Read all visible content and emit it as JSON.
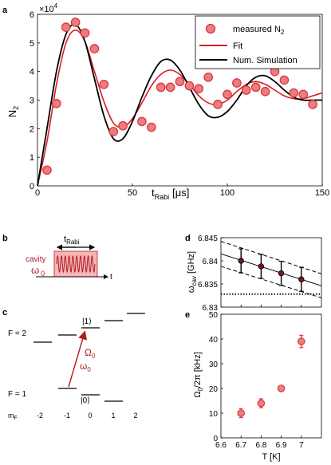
{
  "colors": {
    "measured": "#e0353c",
    "measured_fill": "#e87e82",
    "fit": "#d61f26",
    "sim": "#000000",
    "arrow": "#b01c22",
    "pulse_box": "#f5b5b7",
    "dark_point": "#7a1418"
  },
  "panel_labels": {
    "a": "a",
    "b": "b",
    "c": "c",
    "d": "d",
    "e": "e"
  },
  "panel_b": {
    "t_main": "t",
    "t_sub": "Rabi",
    "cavity": "cavity",
    "omega": "ω",
    "omega_sub": "0",
    "t_axis": "t"
  },
  "panel_c": {
    "f2": "F = 2",
    "f1": "F = 1",
    "ket1": "|1⟩",
    "ket0": "|0⟩",
    "Omega": "Ω",
    "Omega_sub": "0",
    "omega": "ω",
    "omega_sub": "0",
    "mf": "m",
    "mf_sub": "F",
    "mf_values": [
      "-2",
      "-1",
      "0",
      "1",
      "2"
    ]
  },
  "chart_data": [
    {
      "id": "a",
      "type": "line",
      "xlabel": "t",
      "xlabel_sub": "Rabi",
      "xlabel_unit": "[μs]",
      "ylabel": "N",
      "ylabel_sub": "2",
      "exponent": "×10",
      "exponent_power": "4",
      "xlim": [
        0,
        150
      ],
      "ylim": [
        0,
        6
      ],
      "xticks": [
        "0",
        "50",
        "100",
        "150"
      ],
      "yticks": [
        "0",
        "1",
        "2",
        "3",
        "4",
        "5",
        "6"
      ],
      "legend_position": "top-right",
      "series": [
        {
          "name": "measured N",
          "name_sub": "2",
          "kind": "scatter",
          "x": [
            5,
            10,
            15,
            20,
            25,
            30,
            35,
            40,
            45,
            55,
            60,
            65,
            70,
            75,
            80,
            85,
            90,
            95,
            100,
            105,
            110,
            115,
            120,
            125,
            130,
            135,
            140,
            145
          ],
          "y": [
            0.55,
            2.88,
            5.55,
            5.72,
            5.35,
            4.8,
            3.55,
            1.9,
            2.1,
            2.25,
            2.05,
            3.45,
            3.45,
            3.65,
            3.5,
            3.4,
            3.8,
            2.85,
            3.2,
            3.6,
            3.35,
            3.45,
            3.3,
            4.0,
            3.7,
            3.25,
            3.2,
            2.85
          ]
        },
        {
          "name": "Fit",
          "kind": "line",
          "x": [
            0,
            5,
            10,
            15,
            20,
            25,
            30,
            35,
            40,
            45,
            50,
            55,
            60,
            65,
            70,
            75,
            80,
            85,
            90,
            95,
            100,
            105,
            110,
            115,
            120,
            125,
            130,
            135,
            140,
            145,
            150
          ],
          "y": [
            0,
            1.55,
            3.55,
            5.0,
            5.45,
            5.05,
            4.0,
            2.95,
            2.2,
            2.05,
            2.35,
            2.9,
            3.5,
            3.9,
            4.05,
            3.9,
            3.55,
            3.15,
            2.9,
            2.85,
            3.0,
            3.3,
            3.55,
            3.65,
            3.55,
            3.35,
            3.15,
            3.05,
            3.05,
            3.15,
            3.25
          ]
        },
        {
          "name": "Num. Simulation",
          "kind": "line",
          "x": [
            0,
            5,
            10,
            15,
            20,
            25,
            30,
            35,
            40,
            45,
            50,
            55,
            60,
            65,
            70,
            75,
            80,
            85,
            90,
            95,
            100,
            105,
            110,
            115,
            120,
            125,
            130,
            135,
            140,
            145,
            150
          ],
          "y": [
            0,
            2.0,
            4.0,
            5.3,
            5.65,
            5.05,
            3.75,
            2.45,
            1.65,
            1.65,
            2.25,
            3.1,
            3.85,
            4.35,
            4.4,
            4.05,
            3.45,
            2.85,
            2.45,
            2.4,
            2.6,
            3.0,
            3.5,
            3.8,
            3.85,
            3.65,
            3.35,
            3.1,
            3.0,
            3.0,
            3.0
          ]
        }
      ]
    },
    {
      "id": "d",
      "type": "scatter",
      "xlim": [
        6.6,
        7.1
      ],
      "ylim": [
        6.83,
        6.845
      ],
      "yticks": [
        "6.83",
        "6.835",
        "6.84",
        "6.845"
      ],
      "ytick_values": [
        6.83,
        6.835,
        6.84,
        6.845
      ],
      "ylabel": "ω",
      "ylabel_sub": "cav",
      "ylabel_unit": "[GHz]",
      "points": {
        "x": [
          6.7,
          6.8,
          6.9,
          7.0
        ],
        "y": [
          6.84,
          6.8388,
          6.8373,
          6.836
        ],
        "err": [
          0.0026,
          0.0026,
          0.0026,
          0.0026
        ]
      },
      "fit_line": {
        "x": [
          6.6,
          7.1
        ],
        "y": [
          6.8415,
          6.8346
        ]
      },
      "band_upper": {
        "x": [
          6.6,
          7.1
        ],
        "y": [
          6.8442,
          6.8372
        ]
      },
      "band_lower": {
        "x": [
          6.6,
          7.1
        ],
        "y": [
          6.8388,
          6.832
        ]
      },
      "threshold": 6.8328
    },
    {
      "id": "e",
      "type": "scatter",
      "xlim": [
        6.6,
        7.1
      ],
      "ylim": [
        0,
        50
      ],
      "xticks": [
        "6.6",
        "6.7",
        "6.8",
        "6.9",
        "7"
      ],
      "xtick_values": [
        6.6,
        6.7,
        6.8,
        6.9,
        7.0
      ],
      "yticks": [
        "0",
        "10",
        "20",
        "30",
        "40",
        "50"
      ],
      "ytick_values": [
        0,
        10,
        20,
        30,
        40,
        50
      ],
      "xlabel": "T [K]",
      "ylabel": "Ω",
      "ylabel_sub": "0",
      "ylabel_rest": "/2π [kHz]",
      "points": {
        "x": [
          6.7,
          6.8,
          6.9,
          7.0
        ],
        "y": [
          10,
          14,
          20,
          39
        ],
        "err": [
          1.8,
          1.8,
          1.0,
          2.5
        ]
      }
    }
  ]
}
